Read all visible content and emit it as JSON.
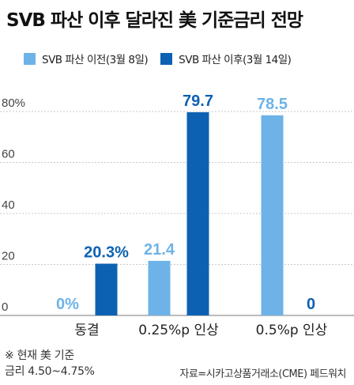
{
  "title": "SVB 파산 이후 달라진 美 기준금리 전망",
  "legend": {
    "series_a_label": "SVB 파산 이전(3월 8일)",
    "series_b_label": "SVB 파산 이후(3월 14일)"
  },
  "colors": {
    "series_a": "#6db3e8",
    "series_b": "#0d61b3"
  },
  "footnote": {
    "line1": "※ 현재 美 기준",
    "line2": "금리 4.50~4.75%"
  },
  "source": "자료=시카고상품거래소(CME) 페드워치",
  "chart_data": {
    "type": "bar",
    "categories": [
      "동결",
      "0.25%p 인상",
      "0.5%p 인상"
    ],
    "series": [
      {
        "name": "SVB 파산 이전(3월 8일)",
        "values": [
          0,
          21.4,
          78.5
        ],
        "labels": [
          "0%",
          "21.4",
          "78.5"
        ]
      },
      {
        "name": "SVB 파산 이후(3월 14일)",
        "values": [
          20.3,
          79.7,
          0
        ],
        "labels": [
          "20.3%",
          "79.7",
          "0"
        ]
      }
    ],
    "ylim": [
      0,
      80
    ],
    "yticks": [
      "0",
      "20",
      "40",
      "60",
      "80%"
    ],
    "ytick_values": [
      0,
      20,
      40,
      60,
      80
    ],
    "grid": true
  }
}
